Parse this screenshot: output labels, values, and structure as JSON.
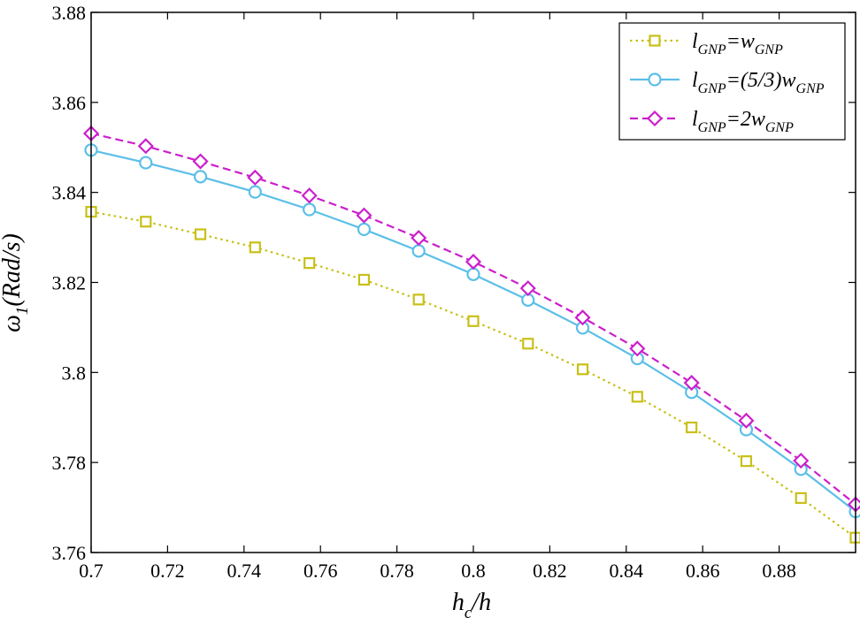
{
  "chart_data": {
    "type": "line",
    "xlabel": {
      "main": "h",
      "sub": "c",
      "tail": "/h"
    },
    "ylabel": {
      "main": "ω",
      "sub": "1",
      "tail": "(Rad/s)"
    },
    "xlim": [
      0.7,
      0.9
    ],
    "ylim": [
      3.76,
      3.88
    ],
    "xticks": [
      0.7,
      0.72,
      0.74,
      0.76,
      0.78,
      0.8,
      0.82,
      0.84,
      0.86,
      0.88
    ],
    "yticks": [
      3.76,
      3.78,
      3.8,
      3.82,
      3.84,
      3.86,
      3.88
    ],
    "xtick_labels": [
      "0.7",
      "0.72",
      "0.74",
      "0.76",
      "0.78",
      "0.8",
      "0.82",
      "0.84",
      "0.86",
      "0.88"
    ],
    "ytick_labels": [
      "3.76",
      "3.78",
      "3.8",
      "3.82",
      "3.84",
      "3.86",
      "3.88"
    ],
    "x": [
      0.7,
      0.7143,
      0.7286,
      0.7429,
      0.7571,
      0.7714,
      0.7857,
      0.8,
      0.8143,
      0.8286,
      0.8429,
      0.8571,
      0.8714,
      0.8857,
      0.9
    ],
    "grid": false,
    "legend_position": "top-right",
    "series": [
      {
        "name_parts": [
          [
            "l",
            "GNP",
            "=w",
            "GNP"
          ]
        ],
        "color": "#c8c018",
        "marker": "square",
        "dash": "dotted",
        "values": [
          3.8357,
          3.8335,
          3.8307,
          3.8278,
          3.8243,
          3.8206,
          3.8162,
          3.8114,
          3.8064,
          3.8007,
          3.7946,
          3.7878,
          3.7803,
          3.7721,
          3.7633
        ]
      },
      {
        "name_parts": [
          [
            "l",
            "GNP",
            "=(5/3)w",
            "GNP"
          ]
        ],
        "color": "#5bbfe8",
        "marker": "circle",
        "dash": "solid",
        "values": [
          3.8494,
          3.8466,
          3.8435,
          3.8401,
          3.8362,
          3.8318,
          3.827,
          3.8218,
          3.8161,
          3.8099,
          3.8031,
          3.7956,
          3.7873,
          3.7785,
          3.7691
        ]
      },
      {
        "name_parts": [
          [
            "l",
            "GNP",
            "=2w",
            "GNP"
          ]
        ],
        "color": "#cc1fcc",
        "marker": "diamond",
        "dash": "dashed",
        "values": [
          3.8531,
          3.8503,
          3.8469,
          3.8433,
          3.8393,
          3.8349,
          3.8299,
          3.8246,
          3.8187,
          3.8122,
          3.8053,
          3.7977,
          3.7893,
          3.7804,
          3.7707
        ]
      }
    ]
  }
}
